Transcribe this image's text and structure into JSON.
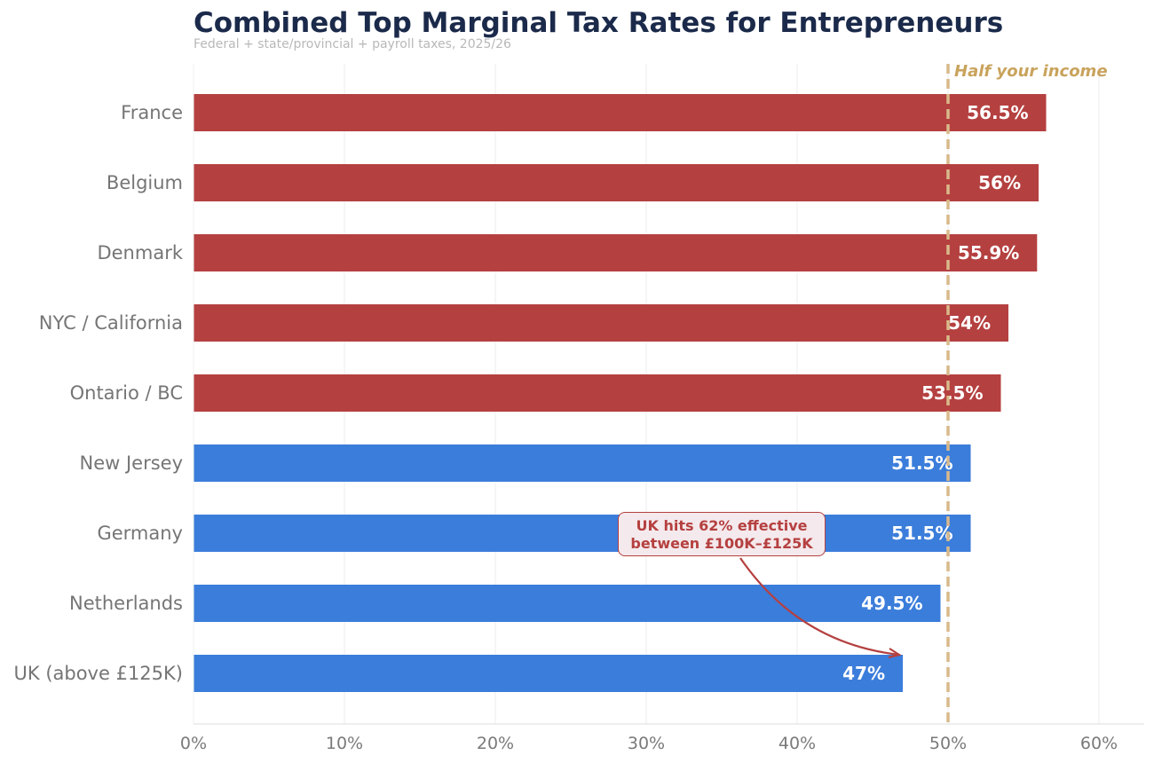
{
  "chart_data": {
    "type": "bar",
    "orientation": "horizontal",
    "title": "Combined Top Marginal Tax Rates for Entrepreneurs",
    "subtitle": "Federal + state/provincial + payroll taxes, 2025/26",
    "categories": [
      "France",
      "Belgium",
      "Denmark",
      "NYC / California",
      "Ontario / BC",
      "New Jersey",
      "Germany",
      "Netherlands",
      "UK (above £125K)"
    ],
    "values": [
      56.5,
      56,
      55.9,
      54,
      53.5,
      51.5,
      51.5,
      49.5,
      47
    ],
    "value_labels": [
      "56.5%",
      "56%",
      "55.9%",
      "54%",
      "53.5%",
      "51.5%",
      "51.5%",
      "49.5%",
      "47%"
    ],
    "groups": [
      "above",
      "above",
      "above",
      "above",
      "above",
      "below",
      "below",
      "below",
      "below"
    ],
    "colors": {
      "above": "#b54040",
      "below": "#3b7ddb",
      "reference": "#d9b98a",
      "title": "#1b2a4a"
    },
    "xlim": [
      0,
      63
    ],
    "xticks": [
      0,
      10,
      20,
      30,
      40,
      50,
      60
    ],
    "xtick_labels": [
      "0%",
      "10%",
      "20%",
      "30%",
      "40%",
      "50%",
      "60%"
    ],
    "grid": true,
    "reference_line": {
      "x": 50,
      "label": "Half your income"
    },
    "annotation": {
      "lines": [
        "UK hits 62% effective",
        "between £100K–£125K"
      ],
      "target_category": "UK (above £125K)",
      "target_value": 47
    }
  }
}
